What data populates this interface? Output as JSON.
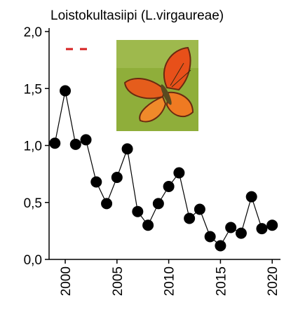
{
  "chart_data": {
    "type": "line",
    "title": "Loistokultasiipi (L.virgaureae)",
    "x": [
      1999,
      2000,
      2001,
      2002,
      2003,
      2004,
      2005,
      2006,
      2007,
      2008,
      2009,
      2010,
      2011,
      2012,
      2013,
      2014,
      2015,
      2016,
      2017,
      2018,
      2019,
      2020
    ],
    "series": [
      {
        "color": "#000000",
        "values": [
          1.02,
          1.48,
          1.01,
          1.05,
          0.68,
          0.49,
          0.72,
          0.97,
          0.42,
          0.3,
          0.49,
          0.64,
          0.76,
          0.36,
          0.44,
          0.2,
          0.12,
          0.28,
          0.23,
          0.55,
          0.27,
          0.3
        ]
      }
    ],
    "xlim": [
      1998.44,
      2020.8
    ],
    "xticks": [
      2000,
      2005,
      2010,
      2015,
      2020
    ],
    "ylim": [
      0,
      2
    ],
    "yticks": [
      {
        "value": 0,
        "label": "0,0"
      },
      {
        "value": 0.5,
        "label": "0,5"
      },
      {
        "value": 1,
        "label": "1,0"
      },
      {
        "value": 1.5,
        "label": "1,5"
      },
      {
        "value": 2,
        "label": "2,0"
      }
    ]
  }
}
